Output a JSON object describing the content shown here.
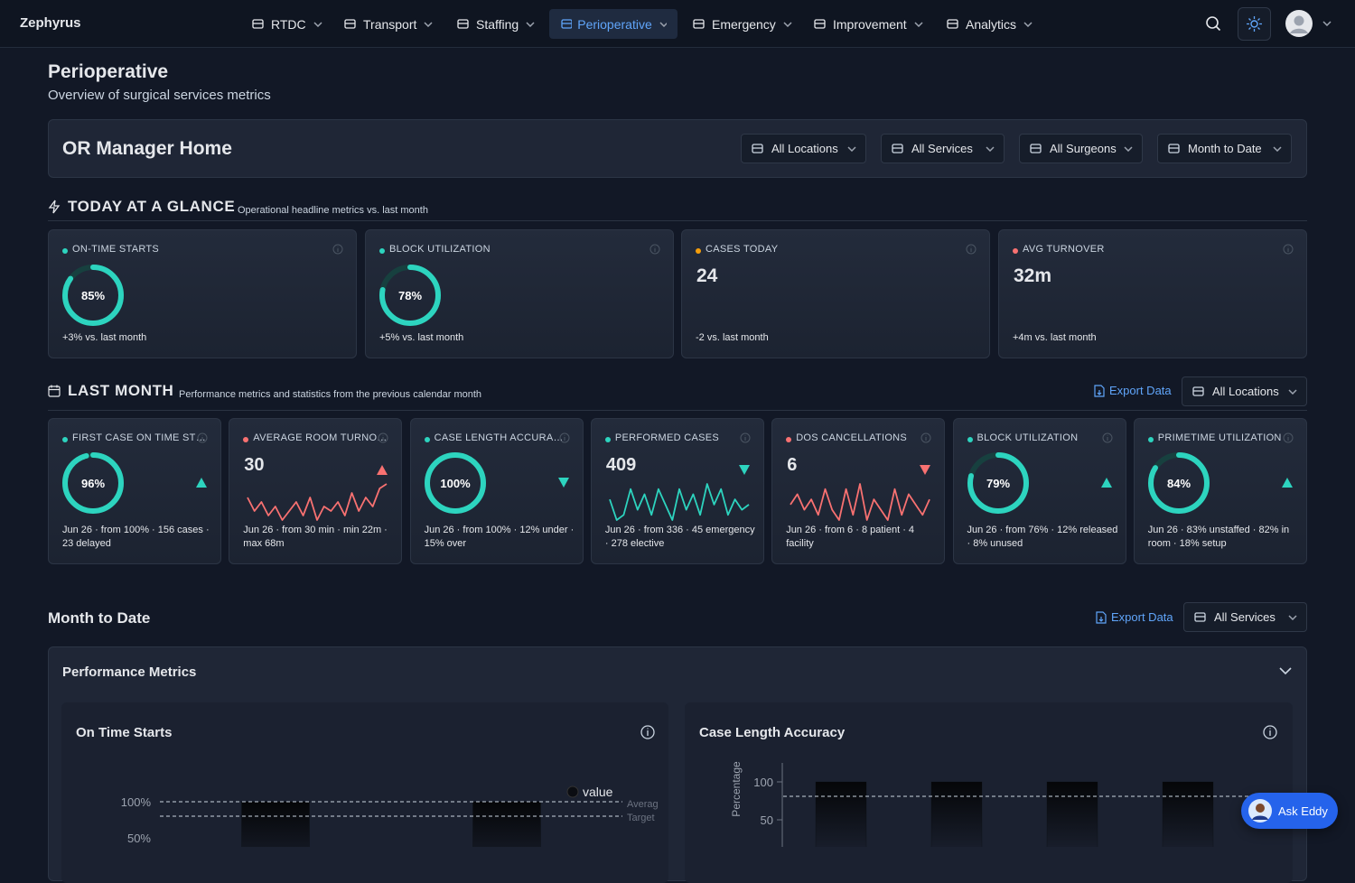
{
  "nav": {
    "brand": "Zephyrus",
    "items": [
      {
        "label": "RTDC"
      },
      {
        "label": "Transport"
      },
      {
        "label": "Staffing"
      },
      {
        "label": "Perioperative",
        "active": true
      },
      {
        "label": "Emergency"
      },
      {
        "label": "Improvement"
      },
      {
        "label": "Analytics"
      }
    ]
  },
  "header": {
    "title": "Perioperative",
    "subtitle": "Overview of surgical services metrics"
  },
  "or_manager": {
    "title": "OR Manager Home",
    "filters": [
      "All Locations",
      "All Services",
      "All Surgeons",
      "Month to Date"
    ]
  },
  "glance": {
    "title": "TODAY AT A GLANCE",
    "subtitle": "Operational headline metrics vs. last month",
    "cards": [
      {
        "label": "ON-TIME STARTS",
        "color": "#2dd4bf",
        "value": 85,
        "value_label": "85%",
        "gauge": true,
        "note": "+3% vs. last month"
      },
      {
        "label": "BLOCK UTILIZATION",
        "color": "#2dd4bf",
        "value": 78,
        "value_label": "78%",
        "gauge": true,
        "note": "+5% vs. last month"
      },
      {
        "label": "CASES TODAY",
        "color": "#f59e0b",
        "value": 24,
        "note": "-2 vs. last month"
      },
      {
        "label": "AVG TURNOVER",
        "color": "#f87171",
        "value": 32,
        "value_label": "32m",
        "note": "+4m vs. last month"
      }
    ]
  },
  "last_month": {
    "title": "LAST MONTH",
    "subtitle": "Performance metrics and statistics from the previous calendar month",
    "export": "Export Data",
    "filter": "All Locations",
    "cards": [
      {
        "label": "FIRST CASE ON TIME ST…",
        "color": "#2dd4bf",
        "value": 96,
        "value_label": "96%",
        "gauge": true,
        "trend": "up",
        "trend_color": "#2dd4bf",
        "note": "Jun 26 · from 100% · 156 cases · 23 delayed"
      },
      {
        "label": "AVERAGE ROOM TURNO…",
        "color": "#f87171",
        "value": 30,
        "spark": [
          6,
          3,
          5,
          2,
          4,
          1,
          3,
          5,
          2,
          6,
          1,
          4,
          3,
          5,
          2,
          7,
          3,
          6,
          4,
          8,
          9
        ],
        "trend": "up",
        "trend_color": "#f87171",
        "note": "Jun 26 · from 30 min · min 22m · max 68m"
      },
      {
        "label": "CASE LENGTH ACCURA…",
        "color": "#2dd4bf",
        "value": 100,
        "value_label": "100%",
        "gauge": true,
        "trend": "down",
        "trend_color": "#2dd4bf",
        "note": "Jun 26 · from 100% · 12% under · 15% over"
      },
      {
        "label": "PERFORMED CASES",
        "color": "#2dd4bf",
        "value": 409,
        "spark": [
          6,
          2,
          3,
          8,
          4,
          7,
          3,
          8,
          5,
          2,
          8,
          4,
          7,
          3,
          9,
          5,
          8,
          3,
          6,
          4,
          5
        ],
        "trend": "down",
        "trend_color": "#2dd4bf",
        "note": "Jun 26 · from 336 · 45 emergency · 278 elective"
      },
      {
        "label": "DOS CANCELLATIONS",
        "color": "#f87171",
        "value": 6,
        "spark": [
          5,
          7,
          4,
          6,
          3,
          8,
          4,
          2,
          8,
          3,
          9,
          2,
          6,
          4,
          2,
          8,
          3,
          7,
          5,
          3,
          6
        ],
        "trend": "down",
        "trend_color": "#f87171",
        "note": "Jun 26 · from 6 · 8 patient · 4 facility"
      },
      {
        "label": "BLOCK UTILIZATION",
        "color": "#2dd4bf",
        "value": 79,
        "value_label": "79%",
        "gauge": true,
        "trend": "up",
        "trend_color": "#2dd4bf",
        "note": "Jun 26 · from 76% · 12% released · 8% unused"
      },
      {
        "label": "PRIMETIME UTILIZATION",
        "color": "#2dd4bf",
        "value": 84,
        "value_label": "84%",
        "gauge": true,
        "trend": "up",
        "trend_color": "#2dd4bf",
        "note": "Jun 26 · 83% unstaffed · 82% in room · 18% setup"
      }
    ]
  },
  "month_to_date": {
    "title": "Month to Date",
    "export": "Export Data",
    "filter": "All Services"
  },
  "performance": {
    "title": "Performance Metrics",
    "charts": [
      {
        "type": "bar",
        "title": "On Time Starts",
        "categories": [
          null,
          null
        ],
        "series": [
          {
            "name": "value",
            "color": "#0b0d12",
            "values": [
              100,
              100
            ]
          }
        ],
        "reference_lines": [
          {
            "label": "Averag",
            "value": 100
          },
          {
            "label": "Target",
            "value": 80
          }
        ],
        "ylim": [
          0,
          125
        ],
        "yticks": [
          {
            "value": 100,
            "label": "100%"
          },
          {
            "value": 50,
            "label": "50%"
          }
        ]
      },
      {
        "type": "bar",
        "title": "Case Length Accuracy",
        "y_label": "Percentage",
        "categories": [
          null,
          null,
          null,
          null
        ],
        "series": [
          {
            "color": "#0b0d12",
            "values": [
              100,
              100,
              100,
              100
            ]
          }
        ],
        "reference_lines": [
          {
            "value": 81
          }
        ],
        "ylim": [
          0,
          125
        ],
        "yticks": [
          100,
          50
        ]
      }
    ]
  },
  "assistant": {
    "label": "Ask Eddy"
  }
}
